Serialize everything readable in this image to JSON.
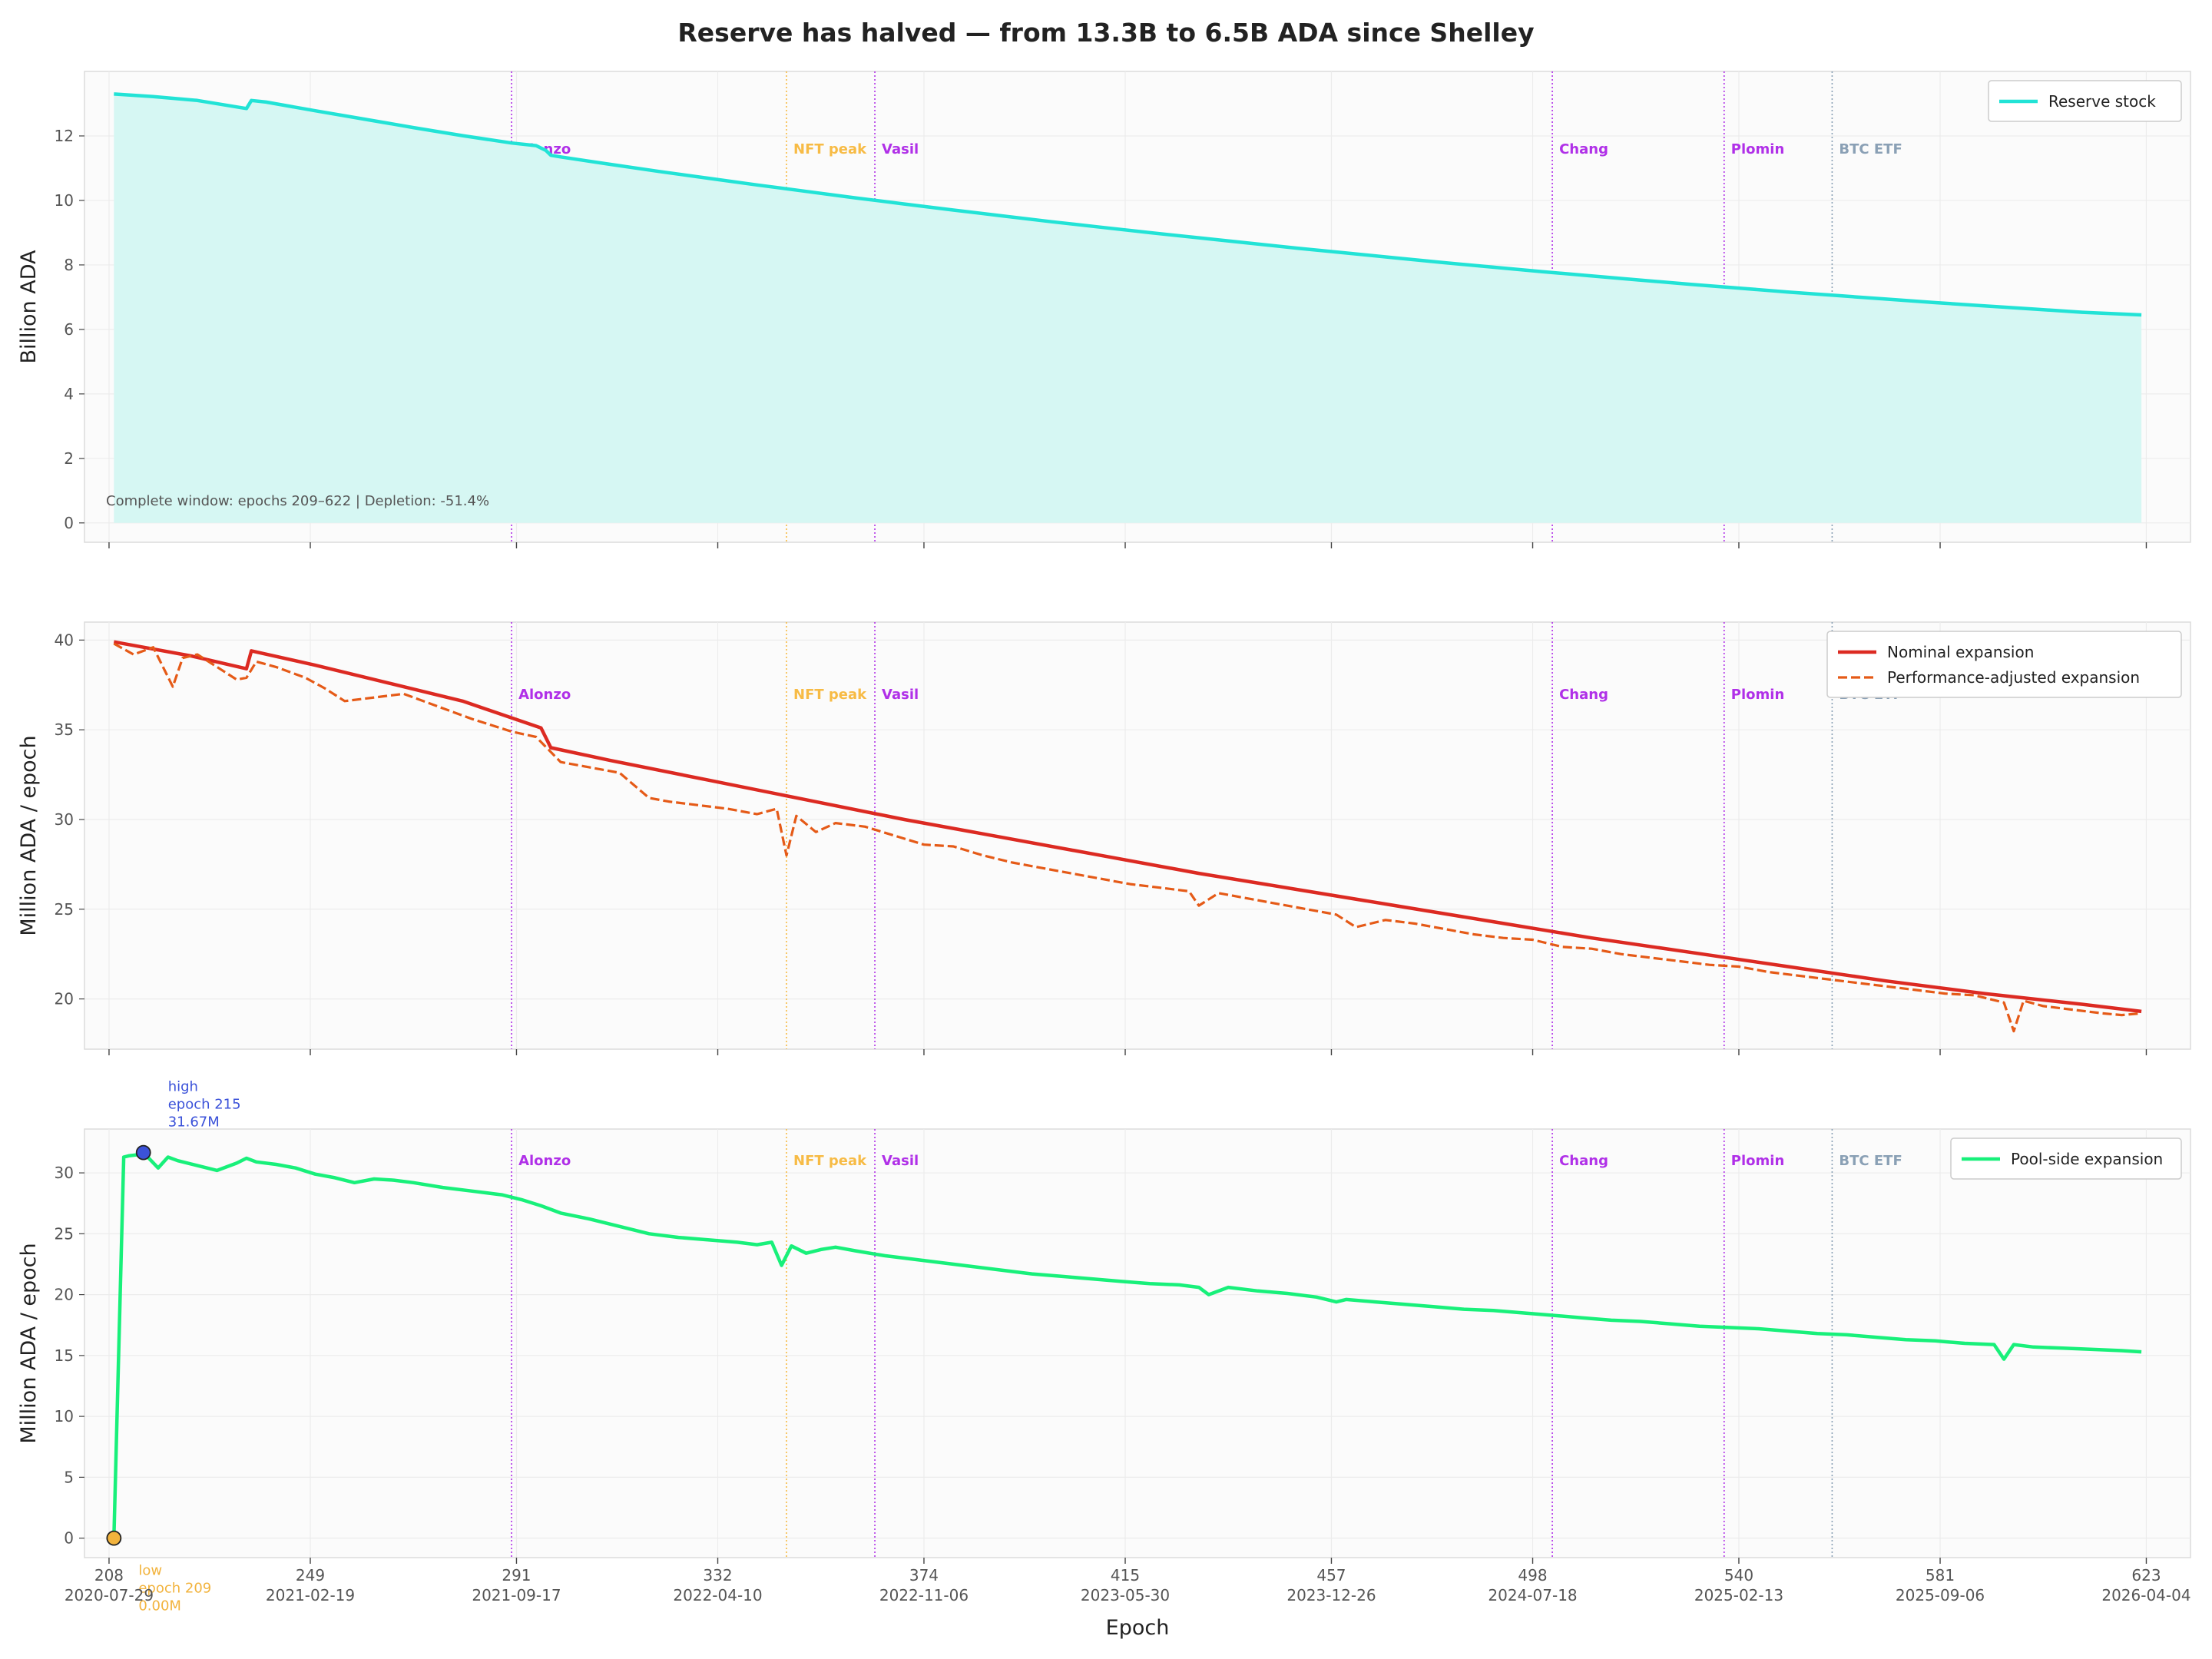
{
  "figure": {
    "title": "Reserve has halved — from 13.3B to 6.5B ADA since Shelley",
    "xlabel": "Epoch"
  },
  "colors": {
    "background": "#fbfbfb",
    "reserve": "#22e3d6",
    "reserve_fill": "#d6f7f3",
    "nominal": "#dc2a22",
    "performance": "#e55a17",
    "pool": "#18f07a",
    "event_purple": "#b030e8",
    "event_nft": "#f7bb45",
    "event_etf": "#8aa0b5",
    "high_marker": "#3b52d9",
    "low_marker": "#f2b33d"
  },
  "x_axis": {
    "range": [
      203,
      632
    ],
    "ticks": [
      {
        "epoch": 208,
        "label": "208",
        "date": "2020-07-29"
      },
      {
        "epoch": 249,
        "label": "249",
        "date": "2021-02-19"
      },
      {
        "epoch": 291,
        "label": "291",
        "date": "2021-09-17"
      },
      {
        "epoch": 332,
        "label": "332",
        "date": "2022-04-10"
      },
      {
        "epoch": 374,
        "label": "374",
        "date": "2022-11-06"
      },
      {
        "epoch": 415,
        "label": "415",
        "date": "2023-05-30"
      },
      {
        "epoch": 457,
        "label": "457",
        "date": "2023-12-26"
      },
      {
        "epoch": 498,
        "label": "498",
        "date": "2024-07-18"
      },
      {
        "epoch": 540,
        "label": "540",
        "date": "2025-02-13"
      },
      {
        "epoch": 581,
        "label": "581",
        "date": "2025-09-06"
      },
      {
        "epoch": 623,
        "label": "623",
        "date": "2026-04-04"
      }
    ]
  },
  "events": [
    {
      "epoch": 290,
      "label": "Alonzo",
      "kind": "purple"
    },
    {
      "epoch": 346,
      "label": "NFT peak",
      "kind": "nft"
    },
    {
      "epoch": 364,
      "label": "Vasil",
      "kind": "purple"
    },
    {
      "epoch": 502,
      "label": "Chang",
      "kind": "purple"
    },
    {
      "epoch": 537,
      "label": "Plomin",
      "kind": "purple"
    },
    {
      "epoch": 559,
      "label": "BTC ETF",
      "kind": "etf"
    }
  ],
  "chart_data": [
    {
      "type": "area",
      "ylabel": "Billion ADA",
      "ylim": [
        -0.6,
        14.0
      ],
      "yticks": [
        0,
        2,
        4,
        6,
        8,
        10,
        12
      ],
      "legend": "top-right",
      "annotation": "Complete window: epochs 209–622 | Depletion: -51.4%",
      "series": [
        {
          "name": "Reserve stock",
          "style": "solid",
          "x": [
            209,
            217,
            226,
            236,
            237,
            240,
            250,
            260,
            270,
            280,
            290,
            295,
            297,
            298,
            300,
            310,
            320,
            330,
            340,
            350,
            360,
            370,
            380,
            390,
            400,
            410,
            420,
            430,
            440,
            450,
            460,
            470,
            480,
            490,
            500,
            510,
            520,
            530,
            540,
            550,
            560,
            570,
            580,
            590,
            600,
            610,
            622
          ],
          "values": [
            13.3,
            13.22,
            13.1,
            12.85,
            13.1,
            13.05,
            12.78,
            12.52,
            12.26,
            12.01,
            11.78,
            11.7,
            11.55,
            11.4,
            11.35,
            11.12,
            10.9,
            10.69,
            10.48,
            10.28,
            10.08,
            9.89,
            9.7,
            9.52,
            9.34,
            9.17,
            9.0,
            8.84,
            8.68,
            8.52,
            8.37,
            8.22,
            8.07,
            7.93,
            7.79,
            7.66,
            7.53,
            7.4,
            7.28,
            7.16,
            7.05,
            6.94,
            6.83,
            6.73,
            6.63,
            6.53,
            6.45
          ]
        }
      ]
    },
    {
      "type": "line",
      "ylabel": "Million ADA / epoch",
      "ylim": [
        17.2,
        41.0
      ],
      "yticks": [
        20,
        25,
        30,
        35,
        40
      ],
      "legend": "top-right",
      "series": [
        {
          "name": "Nominal expansion",
          "style": "solid",
          "x": [
            209,
            215,
            225,
            236,
            237,
            250,
            265,
            280,
            296,
            298,
            310,
            330,
            350,
            370,
            390,
            410,
            430,
            450,
            470,
            490,
            510,
            530,
            550,
            570,
            590,
            610,
            622
          ],
          "values": [
            39.9,
            39.6,
            39.1,
            38.4,
            39.4,
            38.6,
            37.6,
            36.6,
            35.1,
            34.0,
            33.3,
            32.2,
            31.1,
            30.0,
            29.0,
            28.0,
            27.0,
            26.1,
            25.2,
            24.3,
            23.4,
            22.6,
            21.8,
            21.0,
            20.3,
            19.7,
            19.3
          ]
        },
        {
          "name": "Performance-adjusted expansion",
          "style": "dashed",
          "x": [
            209,
            213,
            217,
            221,
            223,
            226,
            230,
            234,
            236,
            238,
            242,
            248,
            252,
            256,
            262,
            268,
            275,
            282,
            290,
            295,
            300,
            306,
            312,
            318,
            322,
            328,
            334,
            340,
            344,
            346,
            348,
            352,
            356,
            362,
            368,
            374,
            380,
            386,
            392,
            398,
            404,
            410,
            416,
            422,
            428,
            430,
            434,
            440,
            446,
            452,
            458,
            462,
            468,
            474,
            480,
            486,
            492,
            498,
            504,
            510,
            516,
            522,
            528,
            534,
            540,
            546,
            552,
            558,
            564,
            570,
            576,
            582,
            588,
            594,
            596,
            598,
            602,
            608,
            614,
            618,
            622
          ],
          "values": [
            39.8,
            39.2,
            39.6,
            37.4,
            39.0,
            39.2,
            38.5,
            37.8,
            37.9,
            38.8,
            38.5,
            37.9,
            37.3,
            36.6,
            36.8,
            37.0,
            36.3,
            35.6,
            34.9,
            34.6,
            33.2,
            32.9,
            32.6,
            31.2,
            31.0,
            30.8,
            30.6,
            30.3,
            30.6,
            28.0,
            30.2,
            29.3,
            29.8,
            29.6,
            29.1,
            28.6,
            28.5,
            28.0,
            27.6,
            27.3,
            27.0,
            26.7,
            26.4,
            26.2,
            26.0,
            25.2,
            25.9,
            25.6,
            25.3,
            25.0,
            24.7,
            24.0,
            24.4,
            24.2,
            23.9,
            23.6,
            23.4,
            23.3,
            22.9,
            22.8,
            22.5,
            22.3,
            22.1,
            21.9,
            21.8,
            21.5,
            21.3,
            21.1,
            20.9,
            20.7,
            20.5,
            20.3,
            20.2,
            19.8,
            18.2,
            19.9,
            19.6,
            19.4,
            19.2,
            19.1,
            19.2
          ]
        }
      ]
    },
    {
      "type": "line",
      "ylabel": "Million ADA / epoch",
      "ylim": [
        -1.6,
        33.6
      ],
      "yticks": [
        0,
        5,
        10,
        15,
        20,
        25,
        30
      ],
      "legend": "top-right",
      "series": [
        {
          "name": "Pool-side expansion",
          "style": "solid",
          "x": [
            209,
            211,
            212,
            214,
            215,
            218,
            220,
            222,
            226,
            230,
            234,
            236,
            238,
            242,
            246,
            250,
            254,
            258,
            262,
            266,
            270,
            276,
            282,
            288,
            292,
            296,
            300,
            306,
            312,
            318,
            324,
            330,
            336,
            340,
            343,
            345,
            347,
            350,
            353,
            356,
            360,
            366,
            372,
            378,
            384,
            390,
            396,
            402,
            408,
            414,
            420,
            426,
            430,
            432,
            436,
            442,
            448,
            454,
            458,
            460,
            466,
            472,
            478,
            484,
            490,
            496,
            502,
            508,
            514,
            520,
            526,
            532,
            538,
            544,
            550,
            556,
            562,
            568,
            574,
            580,
            586,
            592,
            594,
            596,
            600,
            606,
            612,
            618,
            622
          ],
          "values": [
            0.0,
            31.3,
            31.4,
            31.5,
            31.67,
            30.4,
            31.3,
            31.0,
            30.6,
            30.2,
            30.8,
            31.2,
            30.9,
            30.7,
            30.4,
            29.9,
            29.6,
            29.2,
            29.5,
            29.4,
            29.2,
            28.8,
            28.5,
            28.2,
            27.8,
            27.3,
            26.7,
            26.2,
            25.6,
            25.0,
            24.7,
            24.5,
            24.3,
            24.1,
            24.3,
            22.4,
            24.0,
            23.4,
            23.7,
            23.9,
            23.6,
            23.2,
            22.9,
            22.6,
            22.3,
            22.0,
            21.7,
            21.5,
            21.3,
            21.1,
            20.9,
            20.8,
            20.6,
            20.0,
            20.6,
            20.3,
            20.1,
            19.8,
            19.4,
            19.6,
            19.4,
            19.2,
            19.0,
            18.8,
            18.7,
            18.5,
            18.3,
            18.1,
            17.9,
            17.8,
            17.6,
            17.4,
            17.3,
            17.2,
            17.0,
            16.8,
            16.7,
            16.5,
            16.3,
            16.2,
            16.0,
            15.9,
            14.7,
            15.9,
            15.7,
            15.6,
            15.5,
            15.4,
            15.3
          ]
        }
      ],
      "markers": [
        {
          "role": "high",
          "epoch": 215,
          "value": 31.67,
          "text": [
            "high",
            "epoch 215",
            "31.67M"
          ]
        },
        {
          "role": "low",
          "epoch": 209,
          "value": 0.0,
          "text": [
            "low",
            "epoch 209",
            "0.00M"
          ]
        }
      ]
    }
  ]
}
